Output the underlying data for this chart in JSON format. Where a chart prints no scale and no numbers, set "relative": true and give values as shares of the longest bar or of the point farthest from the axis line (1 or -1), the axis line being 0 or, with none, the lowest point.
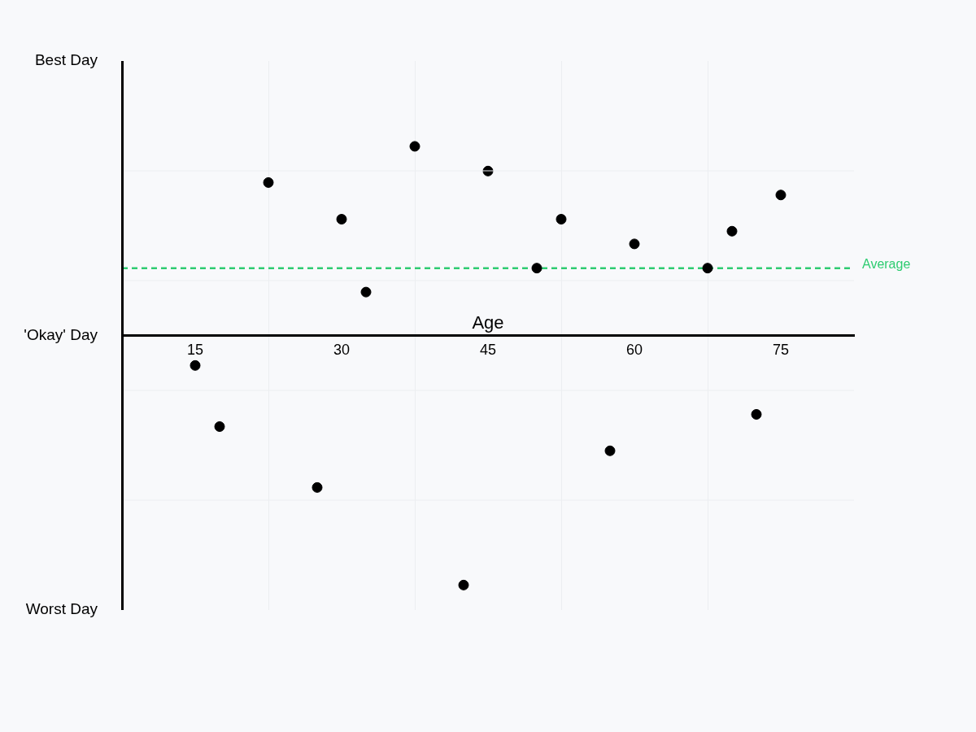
{
  "chart_data": {
    "type": "scatter",
    "xlabel": "Age",
    "relative": true,
    "annotations": [
      "Best Day",
      "'Okay' Day",
      "Worst Day"
    ],
    "x": [
      15,
      17.5,
      22.5,
      27.5,
      30,
      32.5,
      37.5,
      42.5,
      45,
      50,
      52.5,
      57.5,
      60,
      67.5,
      70,
      72.5,
      75
    ],
    "series": [
      {
        "color": "#000000",
        "marker": "circle",
        "values": [
          -0.12,
          -0.365,
          0.613,
          -0.609,
          0.466,
          0.174,
          0.758,
          -1,
          0.659,
          0.27,
          0.466,
          -0.462,
          0.367,
          0.27,
          0.418,
          -0.316,
          0.563
        ]
      },
      {
        "type": "line",
        "name": "Average",
        "color": "#2ecc71",
        "line_style": "dashed",
        "marker": "none",
        "x": [
          7.5,
          82.5
        ],
        "values": [
          0.27,
          0.27
        ]
      }
    ],
    "xlim": [
      7.5,
      82.5
    ],
    "xticks": [
      15,
      {
        "value": 22.5,
        "label": null
      },
      30,
      {
        "value": 37.5,
        "label": null
      },
      45,
      {
        "value": 52.5,
        "label": null
      },
      60,
      {
        "value": 67.5,
        "label": null
      },
      75
    ],
    "grid": true,
    "legend": false
  }
}
